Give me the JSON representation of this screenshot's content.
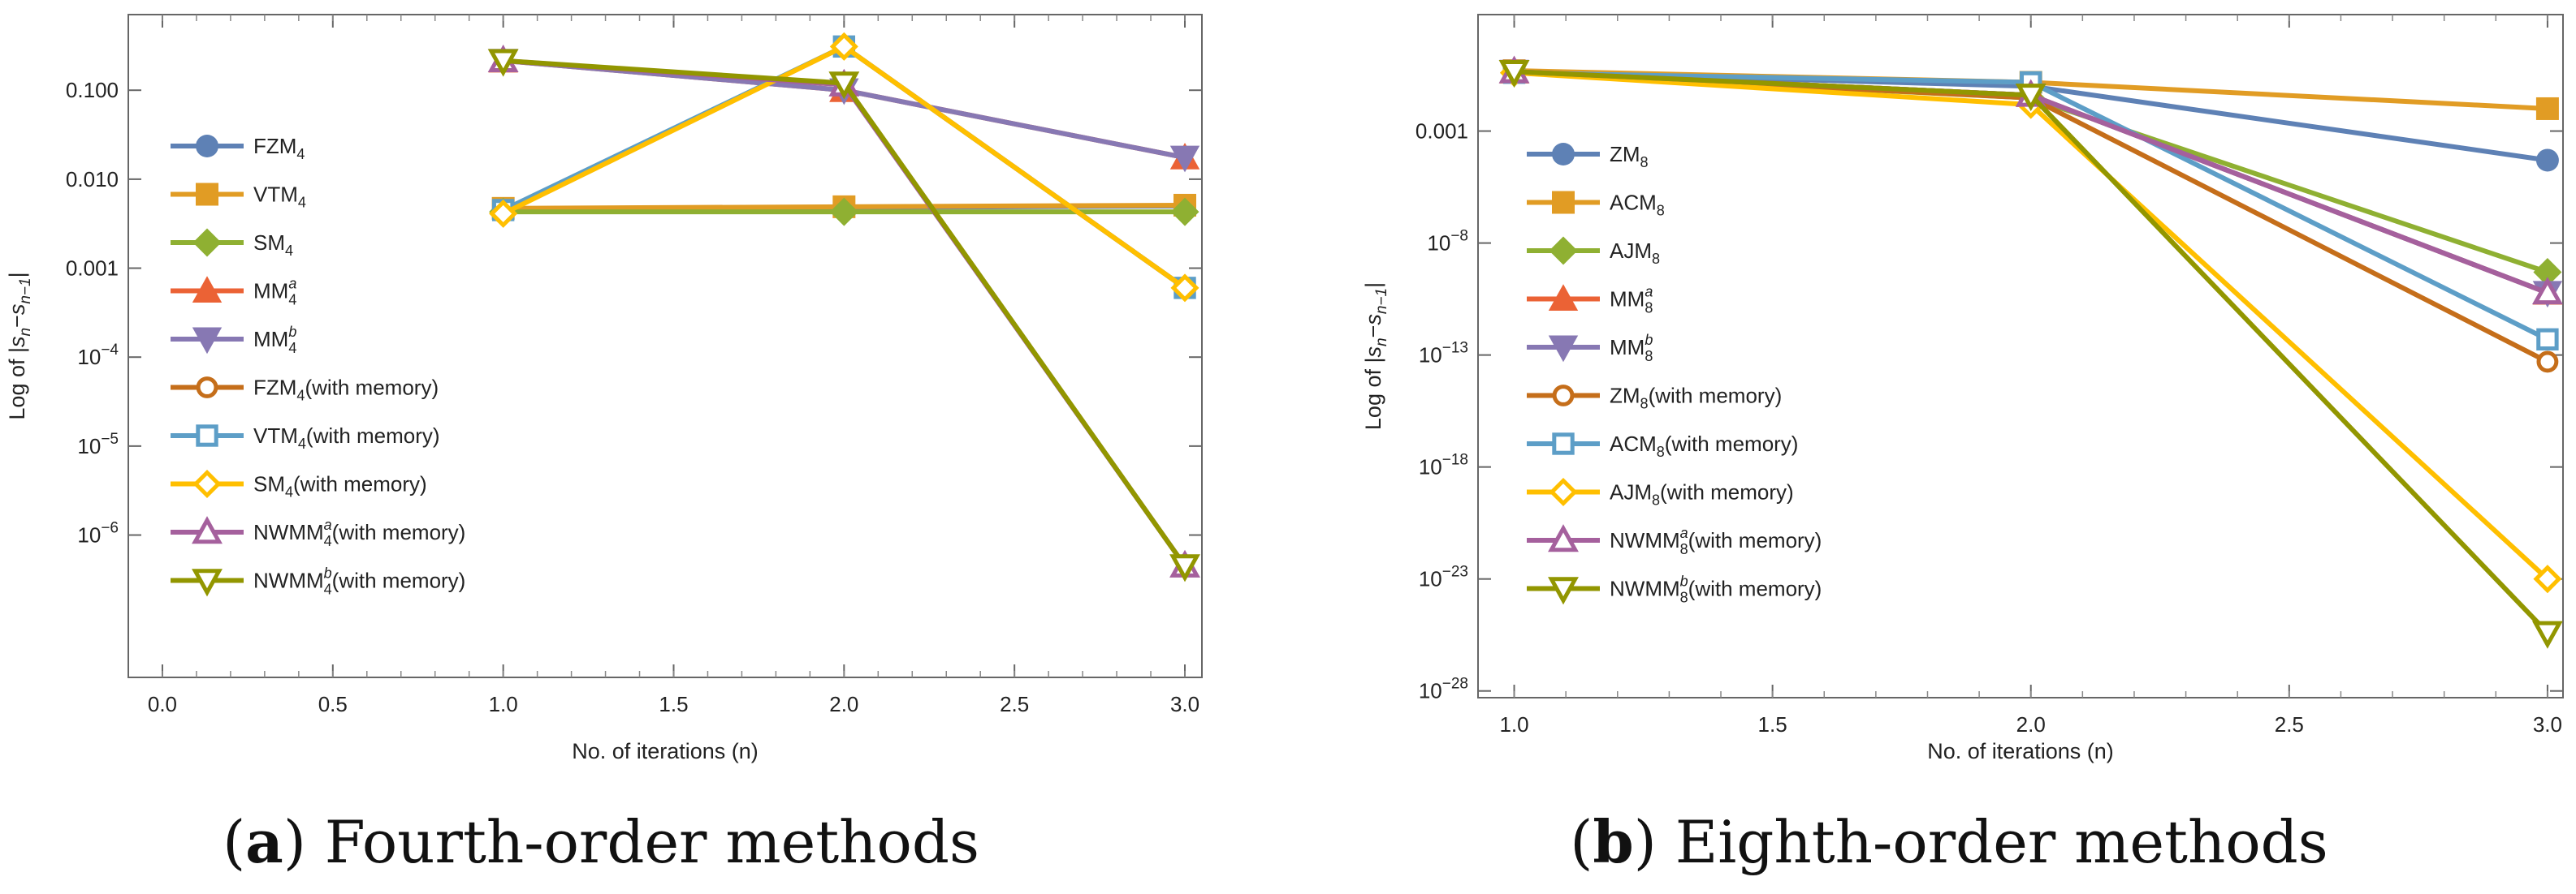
{
  "captions": [
    {
      "letter": "a",
      "text": "Fourth-order methods"
    },
    {
      "letter": "b",
      "text": "Eighth-order methods"
    }
  ],
  "chart_data": [
    {
      "type": "line",
      "xlabel": "No. of iterations (n)",
      "ylabel": "Log of |s_n−s_{n−1}|",
      "yscale": "log",
      "xlim": [
        -0.1,
        3.05
      ],
      "ylim_log10": [
        -7.6,
        -0.15
      ],
      "xticks": [
        0.0,
        0.5,
        1.0,
        1.5,
        2.0,
        2.5,
        3.0
      ],
      "xtick_labels": [
        "0.0",
        "0.5",
        "1.0",
        "1.5",
        "2.0",
        "2.5",
        "3.0"
      ],
      "yticks": [
        {
          "exp": -1,
          "label": "0.100"
        },
        {
          "exp": -2,
          "label": "0.010"
        },
        {
          "exp": -3,
          "label": "0.001"
        },
        {
          "exp": -4,
          "label": "10",
          "sup": "−4"
        },
        {
          "exp": -5,
          "label": "10",
          "sup": "−5"
        },
        {
          "exp": -6,
          "label": "10",
          "sup": "−6"
        }
      ],
      "legend_position": "left",
      "series": [
        {
          "name": "FZM",
          "sub": "4",
          "sup": "",
          "suffix": "",
          "color": "#5e81b5",
          "marker": "circle",
          "filled": true,
          "x": [
            1,
            2,
            3
          ],
          "y": [
            0.0045,
            0.0048,
            0.005
          ]
        },
        {
          "name": "VTM",
          "sub": "4",
          "sup": "",
          "suffix": "",
          "color": "#e19c24",
          "marker": "square",
          "filled": true,
          "x": [
            1,
            2,
            3
          ],
          "y": [
            0.0047,
            0.0049,
            0.0051
          ]
        },
        {
          "name": "SM",
          "sub": "4",
          "sup": "",
          "suffix": "",
          "color": "#8fb032",
          "marker": "diamond",
          "filled": true,
          "x": [
            1,
            2,
            3
          ],
          "y": [
            0.0043,
            0.0043,
            0.0043
          ]
        },
        {
          "name": "MM",
          "sub": "4",
          "sup": "a",
          "suffix": "",
          "color": "#eb6235",
          "marker": "triangle",
          "filled": true,
          "x": [
            1,
            2,
            3
          ],
          "y": [
            0.215,
            0.1,
            0.0175
          ]
        },
        {
          "name": "MM",
          "sub": "4",
          "sup": "b",
          "suffix": "",
          "color": "#8778b3",
          "marker": "triangle-down",
          "filled": true,
          "x": [
            1,
            2,
            3
          ],
          "y": [
            0.215,
            0.1,
            0.0175
          ]
        },
        {
          "name": "FZM",
          "sub": "4",
          "sup": "",
          "suffix": "(with memory)",
          "color": "#c56e1a",
          "marker": "circle",
          "filled": false,
          "x": [
            1,
            2,
            3
          ],
          "y": [
            0.0042,
            0.31,
            0.0006
          ]
        },
        {
          "name": "VTM",
          "sub": "4",
          "sup": "",
          "suffix": "(with memory)",
          "color": "#5d9ec7",
          "marker": "square",
          "filled": false,
          "x": [
            1,
            2,
            3
          ],
          "y": [
            0.0045,
            0.31,
            0.0006
          ]
        },
        {
          "name": "SM",
          "sub": "4",
          "sup": "",
          "suffix": "(with memory)",
          "color": "#ffbf00",
          "marker": "diamond",
          "filled": false,
          "x": [
            1,
            2,
            3
          ],
          "y": [
            0.0041,
            0.31,
            0.0006
          ]
        },
        {
          "name": "NWMM",
          "sub": "4",
          "sup": "a",
          "suffix": "(with memory)",
          "color": "#a5609d",
          "marker": "triangle",
          "filled": false,
          "x": [
            1,
            2,
            3
          ],
          "y": [
            0.215,
            0.115,
            4.5e-07
          ]
        },
        {
          "name": "NWMM",
          "sub": "4",
          "sup": "b",
          "suffix": "(with memory)",
          "color": "#929600",
          "marker": "triangle-down",
          "filled": false,
          "x": [
            1,
            2,
            3
          ],
          "y": [
            0.215,
            0.12,
            4.5e-07
          ]
        }
      ]
    },
    {
      "type": "line",
      "xlabel": "No. of iterations (n)",
      "ylabel": "Log of |s_n−s_{n−1}|",
      "yscale": "log",
      "xlim": [
        0.93,
        3.03
      ],
      "ylim_log10": [
        -28.3,
        2.2
      ],
      "xticks": [
        1.0,
        1.5,
        2.0,
        2.5,
        3.0
      ],
      "xtick_labels": [
        "1.0",
        "1.5",
        "2.0",
        "2.5",
        "3.0"
      ],
      "yticks": [
        {
          "exp": -3,
          "label": "0.001"
        },
        {
          "exp": -8,
          "label": "10",
          "sup": "−8"
        },
        {
          "exp": -13,
          "label": "10",
          "sup": "−13"
        },
        {
          "exp": -18,
          "label": "10",
          "sup": "−18"
        },
        {
          "exp": -23,
          "label": "10",
          "sup": "−23"
        },
        {
          "exp": -28,
          "label": "10",
          "sup": "−28"
        }
      ],
      "legend_position": "left",
      "series": [
        {
          "name": "ZM",
          "sub": "8",
          "sup": "",
          "suffix": "",
          "color": "#5e81b5",
          "marker": "circle",
          "filled": true,
          "x": [
            1,
            2,
            3
          ],
          "y": [
            0.45,
            0.1,
            5e-05
          ]
        },
        {
          "name": "ACM",
          "sub": "8",
          "sup": "",
          "suffix": "",
          "color": "#e19c24",
          "marker": "square",
          "filled": true,
          "x": [
            1,
            2,
            3
          ],
          "y": [
            0.5,
            0.15,
            0.01
          ]
        },
        {
          "name": "AJM",
          "sub": "8",
          "sup": "",
          "suffix": "",
          "color": "#8fb032",
          "marker": "diamond",
          "filled": true,
          "x": [
            1,
            2,
            3
          ],
          "y": [
            0.4,
            0.03,
            5e-10
          ]
        },
        {
          "name": "MM",
          "sub": "8",
          "sup": "a",
          "suffix": "",
          "color": "#eb6235",
          "marker": "triangle",
          "filled": true,
          "x": [
            1,
            2,
            3
          ],
          "y": [
            0.45,
            0.04,
            6e-11
          ]
        },
        {
          "name": "MM",
          "sub": "8",
          "sup": "b",
          "suffix": "",
          "color": "#8778b3",
          "marker": "triangle-down",
          "filled": true,
          "x": [
            1,
            2,
            3
          ],
          "y": [
            0.45,
            0.04,
            6e-11
          ]
        },
        {
          "name": "ZM",
          "sub": "8",
          "sup": "",
          "suffix": "(with memory)",
          "color": "#c56e1a",
          "marker": "circle",
          "filled": false,
          "x": [
            1,
            2,
            3
          ],
          "y": [
            0.45,
            0.03,
            5e-14
          ]
        },
        {
          "name": "ACM",
          "sub": "8",
          "sup": "",
          "suffix": "(with memory)",
          "color": "#5d9ec7",
          "marker": "square",
          "filled": false,
          "x": [
            1,
            2,
            3
          ],
          "y": [
            0.4,
            0.15,
            5e-13
          ]
        },
        {
          "name": "AJM",
          "sub": "8",
          "sup": "",
          "suffix": "(with memory)",
          "color": "#ffbf00",
          "marker": "diamond",
          "filled": false,
          "x": [
            1,
            2,
            3
          ],
          "y": [
            0.4,
            0.015,
            1e-23
          ]
        },
        {
          "name": "NWMM",
          "sub": "8",
          "sup": "a",
          "suffix": "(with memory)",
          "color": "#a5609d",
          "marker": "triangle",
          "filled": false,
          "x": [
            1,
            2,
            3
          ],
          "y": [
            0.45,
            0.04,
            6e-11
          ]
        },
        {
          "name": "NWMM",
          "sub": "8",
          "sup": "b",
          "suffix": "(with memory)",
          "color": "#929600",
          "marker": "triangle-down",
          "filled": false,
          "x": [
            1,
            2,
            3
          ],
          "y": [
            0.45,
            0.04,
            4e-26
          ]
        }
      ]
    }
  ]
}
